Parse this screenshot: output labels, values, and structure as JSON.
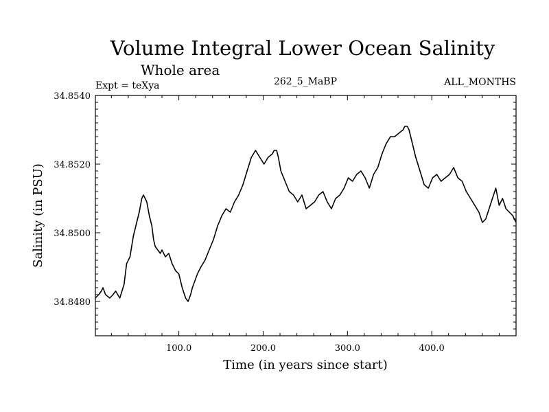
{
  "chart_data": {
    "type": "line",
    "title": "Volume Integral Lower Ocean Salinity",
    "subtitle": "Whole area",
    "header_left": "Expt = teXya",
    "header_center": "262_5_MaBP",
    "header_right": "ALL_MONTHS",
    "xlabel": "Time (in years since start)",
    "ylabel": "Salinity (in PSU)",
    "xlim": [
      1,
      500
    ],
    "ylim": [
      34.847,
      34.854
    ],
    "xticks": [
      100,
      200,
      300,
      400
    ],
    "xtick_labels": [
      "100.0",
      "200.0",
      "300.0",
      "400.0"
    ],
    "yticks": [
      34.848,
      34.85,
      34.852,
      34.854
    ],
    "ytick_labels": [
      "34.8480",
      "34.8500",
      "34.8520",
      "34.8540"
    ],
    "grid": false,
    "line_color": "#000000",
    "series": [
      {
        "x": [
          1,
          5,
          8,
          10,
          13,
          18,
          22,
          25,
          30,
          35,
          38,
          42,
          46,
          50,
          53,
          56,
          58,
          60,
          62,
          65,
          68,
          70,
          72,
          75,
          78,
          80,
          84,
          88,
          92,
          96,
          100,
          104,
          108,
          111,
          114,
          116,
          119,
          122,
          126,
          131,
          136,
          141,
          146,
          151,
          156,
          161,
          166,
          171,
          176,
          181,
          186,
          191,
          196,
          201,
          206,
          211,
          213,
          216,
          218,
          221,
          226,
          231,
          236,
          241,
          246,
          251,
          256,
          261,
          266,
          271,
          276,
          281,
          286,
          291,
          296,
          301,
          306,
          311,
          316,
          321,
          326,
          331,
          336,
          341,
          346,
          351,
          356,
          361,
          366,
          368,
          371,
          373,
          376,
          381,
          386,
          391,
          396,
          401,
          406,
          411,
          416,
          421,
          426,
          431,
          436,
          441,
          446,
          451,
          456,
          460,
          464,
          468,
          472,
          476,
          480,
          484,
          488,
          492,
          496,
          500
        ],
        "y": [
          34.8481,
          34.8482,
          34.8483,
          34.8484,
          34.8482,
          34.8481,
          34.8482,
          34.8483,
          34.8481,
          34.8485,
          34.8491,
          34.8493,
          34.8499,
          34.8503,
          34.8506,
          34.851,
          34.8511,
          34.851,
          34.8509,
          34.8505,
          34.8502,
          34.8498,
          34.8496,
          34.8495,
          34.8494,
          34.8495,
          34.8493,
          34.8494,
          34.8491,
          34.8489,
          34.8488,
          34.8484,
          34.8481,
          34.848,
          34.8482,
          34.8484,
          34.8486,
          34.8488,
          34.849,
          34.8492,
          34.8495,
          34.8498,
          34.8502,
          34.8505,
          34.8507,
          34.8506,
          34.8509,
          34.8511,
          34.8514,
          34.8518,
          34.8522,
          34.8524,
          34.8522,
          34.852,
          34.8522,
          34.8523,
          34.8524,
          34.8524,
          34.8522,
          34.8518,
          34.8515,
          34.8512,
          34.8511,
          34.8509,
          34.8511,
          34.8507,
          34.8508,
          34.8509,
          34.8511,
          34.8512,
          34.8509,
          34.8507,
          34.851,
          34.8511,
          34.8513,
          34.8516,
          34.8515,
          34.8517,
          34.8518,
          34.8516,
          34.8513,
          34.8517,
          34.8519,
          34.8523,
          34.8526,
          34.8528,
          34.8528,
          34.8529,
          34.853,
          34.8531,
          34.8531,
          34.853,
          34.8527,
          34.8522,
          34.8518,
          34.8514,
          34.8513,
          34.8516,
          34.8517,
          34.8515,
          34.8516,
          34.8517,
          34.8519,
          34.8516,
          34.8515,
          34.8512,
          34.851,
          34.8508,
          34.8506,
          34.8503,
          34.8504,
          34.8507,
          34.851,
          34.8513,
          34.8508,
          34.851,
          34.8507,
          34.8506,
          34.8505,
          34.8503
        ]
      }
    ]
  }
}
